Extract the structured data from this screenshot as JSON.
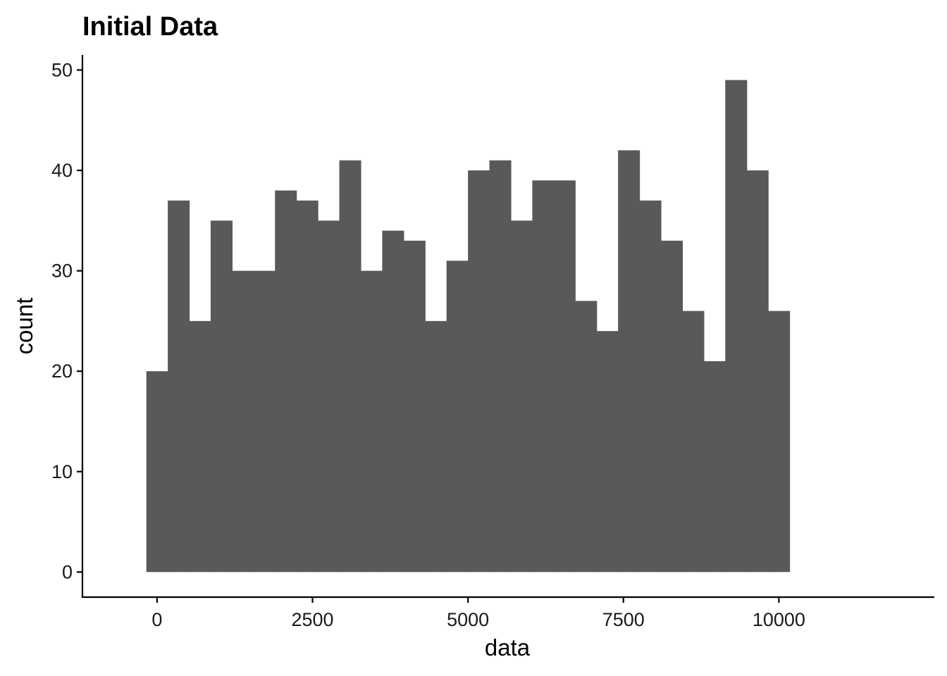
{
  "chart_data": {
    "type": "bar",
    "title": "Initial Data",
    "xlabel": "data",
    "ylabel": "count",
    "bin_width": 344.8,
    "bin_centers": [
      0,
      344.8,
      689.7,
      1034.5,
      1379.3,
      1724.1,
      2069.0,
      2413.8,
      2758.6,
      3103.4,
      3448.3,
      3793.1,
      4137.9,
      4482.8,
      4827.6,
      5172.4,
      5517.2,
      5862.1,
      6206.9,
      6551.7,
      6896.6,
      7241.4,
      7586.2,
      7931.0,
      8275.9,
      8620.7,
      8965.5,
      9310.3,
      9655.2,
      10000
    ],
    "values": [
      20,
      37,
      25,
      35,
      30,
      30,
      38,
      37,
      35,
      41,
      30,
      34,
      33,
      25,
      31,
      40,
      41,
      35,
      39,
      39,
      27,
      24,
      42,
      37,
      33,
      26,
      21,
      49,
      40,
      26
    ],
    "xlim": [
      -1200,
      12500
    ],
    "ylim": [
      -2.5,
      51.5
    ],
    "x_ticks": [
      0,
      2500,
      5000,
      7500,
      10000
    ],
    "x_tick_labels": [
      "0",
      "2500",
      "5000",
      "7500",
      "10000"
    ],
    "y_ticks": [
      0,
      10,
      20,
      30,
      40,
      50
    ],
    "y_tick_labels": [
      "0",
      "10",
      "20",
      "30",
      "40",
      "50"
    ],
    "bar_color": "#595959",
    "grid": false,
    "legend": "none"
  }
}
